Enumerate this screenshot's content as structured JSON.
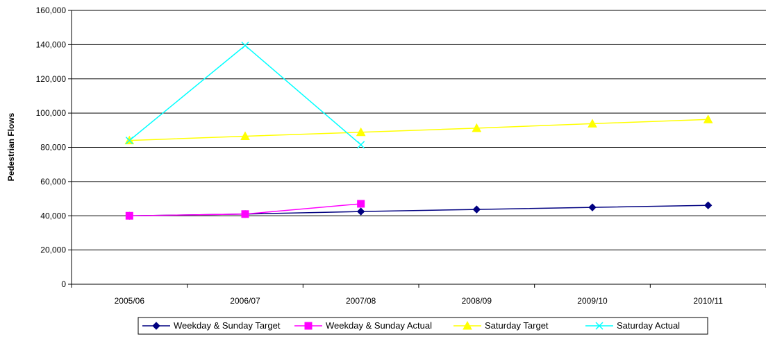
{
  "chart_data": {
    "type": "line",
    "title": "",
    "xlabel": "",
    "ylabel": "Pedestrian Flows",
    "categories": [
      "2005/06",
      "2006/07",
      "2007/08",
      "2008/09",
      "2009/10",
      "2010/11"
    ],
    "ylim": [
      0,
      160000
    ],
    "yticks": [
      0,
      20000,
      40000,
      60000,
      80000,
      100000,
      120000,
      140000,
      160000
    ],
    "ytick_labels": [
      "0",
      "20,000",
      "40,000",
      "60,000",
      "80,000",
      "100,000",
      "120,000",
      "140,000",
      "160,000"
    ],
    "grid": "horizontal",
    "legend_position": "bottom",
    "series": [
      {
        "name": "Weekday & Sunday Target",
        "color": "#000080",
        "marker": "diamond",
        "values": [
          40000,
          41000,
          42500,
          43700,
          44900,
          46100
        ]
      },
      {
        "name": "Weekday & Sunday Actual",
        "color": "#FF00FF",
        "marker": "square",
        "values": [
          40000,
          41000,
          47000,
          null,
          null,
          null
        ]
      },
      {
        "name": "Saturday Target",
        "color": "#FFFF00",
        "marker": "triangle",
        "values": [
          84000,
          86500,
          88800,
          91200,
          93800,
          96300
        ]
      },
      {
        "name": "Saturday Actual",
        "color": "#00FFFF",
        "marker": "x",
        "values": [
          84000,
          139500,
          81500,
          null,
          null,
          null
        ]
      }
    ]
  }
}
